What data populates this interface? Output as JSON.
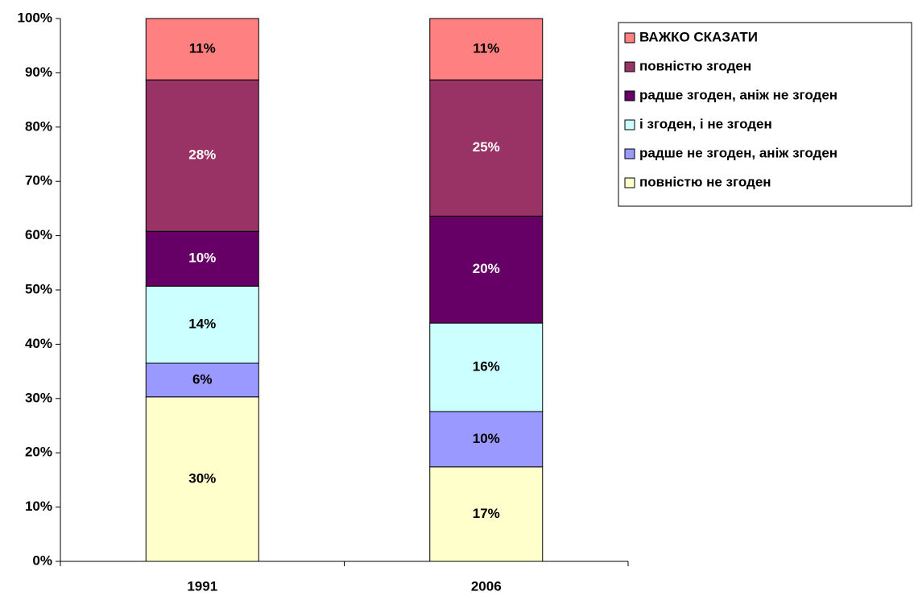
{
  "chart_data": {
    "type": "stacked_bar_100",
    "categories": [
      "1991",
      "2006"
    ],
    "series": [
      {
        "name": "повністю не згоден",
        "color": "#FFFFCC",
        "values": [
          30.3,
          17.4
        ],
        "value_labels": [
          "30%",
          "17%"
        ]
      },
      {
        "name": "радше не згоден, аніж згоден",
        "color": "#9999FF",
        "values": [
          6.2,
          10.2
        ],
        "value_labels": [
          "6%",
          "10%"
        ]
      },
      {
        "name": "і згоден, і не згоден",
        "color": "#CCFFFF",
        "values": [
          14.2,
          16.3
        ],
        "value_labels": [
          "14%",
          "16%"
        ]
      },
      {
        "name": "радше згоден, аніж не згоден",
        "color": "#660066",
        "values": [
          10.1,
          19.7
        ],
        "value_labels": [
          "10%",
          "20%"
        ]
      },
      {
        "name": "повністю згоден",
        "color": "#993366",
        "values": [
          27.9,
          25.1
        ],
        "value_labels": [
          "28%",
          "25%"
        ]
      },
      {
        "name": "ВАЖКО СКАЗАТИ",
        "color": "#FF8080",
        "values": [
          11.3,
          11.3
        ],
        "value_labels": [
          "11%",
          "11%"
        ]
      }
    ],
    "ylim": [
      0,
      100
    ],
    "yticks": [
      {
        "value": 0,
        "label": "0%"
      },
      {
        "value": 10,
        "label": "10%"
      },
      {
        "value": 20,
        "label": "20%"
      },
      {
        "value": 30,
        "label": "30%"
      },
      {
        "value": 40,
        "label": "40%"
      },
      {
        "value": 50,
        "label": "50%"
      },
      {
        "value": 60,
        "label": "60%"
      },
      {
        "value": 70,
        "label": "70%"
      },
      {
        "value": 80,
        "label": "80%"
      },
      {
        "value": 90,
        "label": "90%"
      },
      {
        "value": 100,
        "label": "100%"
      }
    ],
    "legend": "top-right"
  }
}
